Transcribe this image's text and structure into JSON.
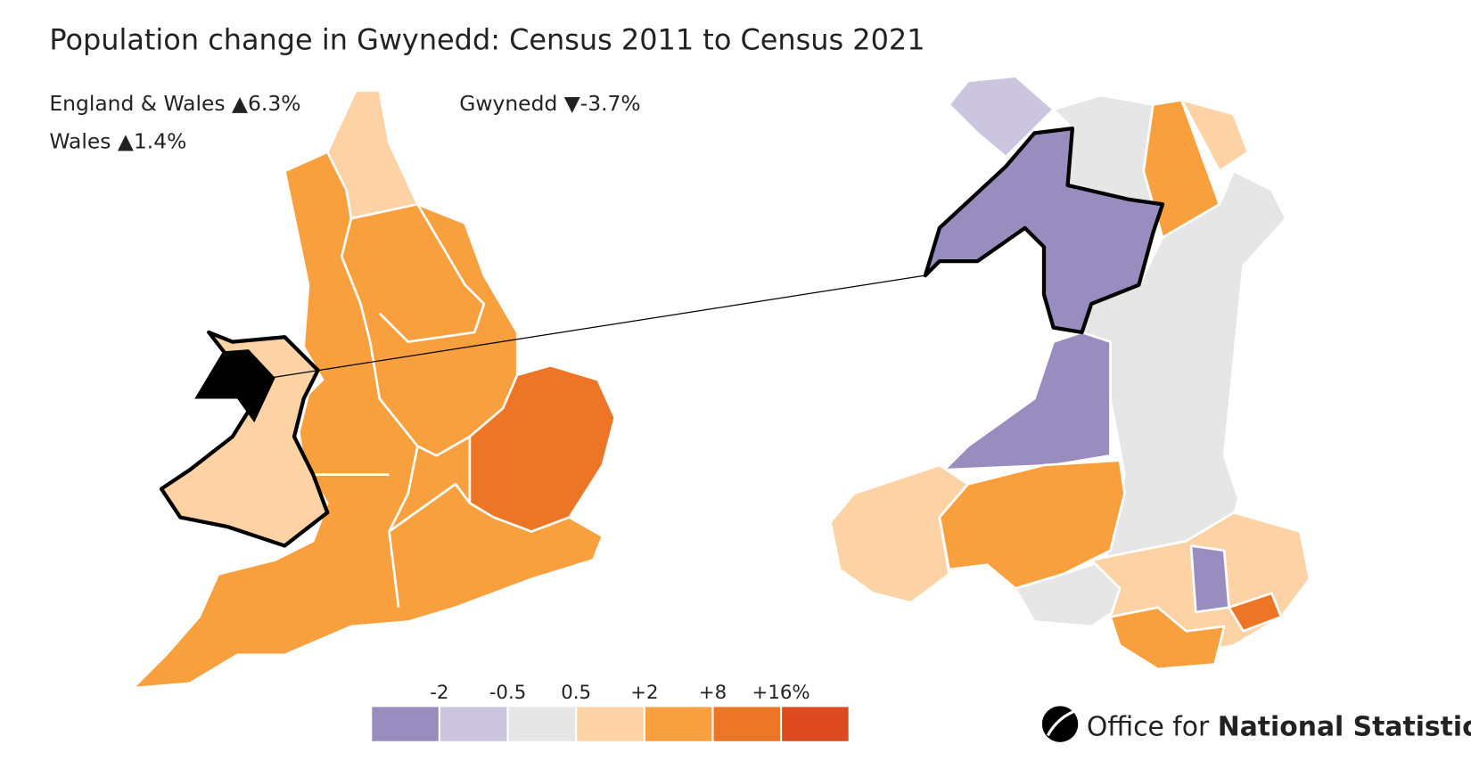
{
  "header": {
    "title": "Population change in Gwynedd: Census 2011 to Census 2021"
  },
  "stats": {
    "england_wales": "England & Wales ▲6.3%",
    "wales": "Wales ▲1.4%",
    "gwynedd": "Gwynedd ▼-3.7%"
  },
  "legend": {
    "labels": [
      "-2",
      "-0.5",
      "0.5",
      "+2",
      "+8",
      "+16%"
    ],
    "colors": [
      "#998dbf",
      "#cbc5e0",
      "#e6e6e6",
      "#fdd3a5",
      "#f9a03e",
      "#ec7625",
      "#dd4a1f"
    ]
  },
  "logo": {
    "text_regular": "Office for",
    "text_bold": "National Statistics"
  }
}
